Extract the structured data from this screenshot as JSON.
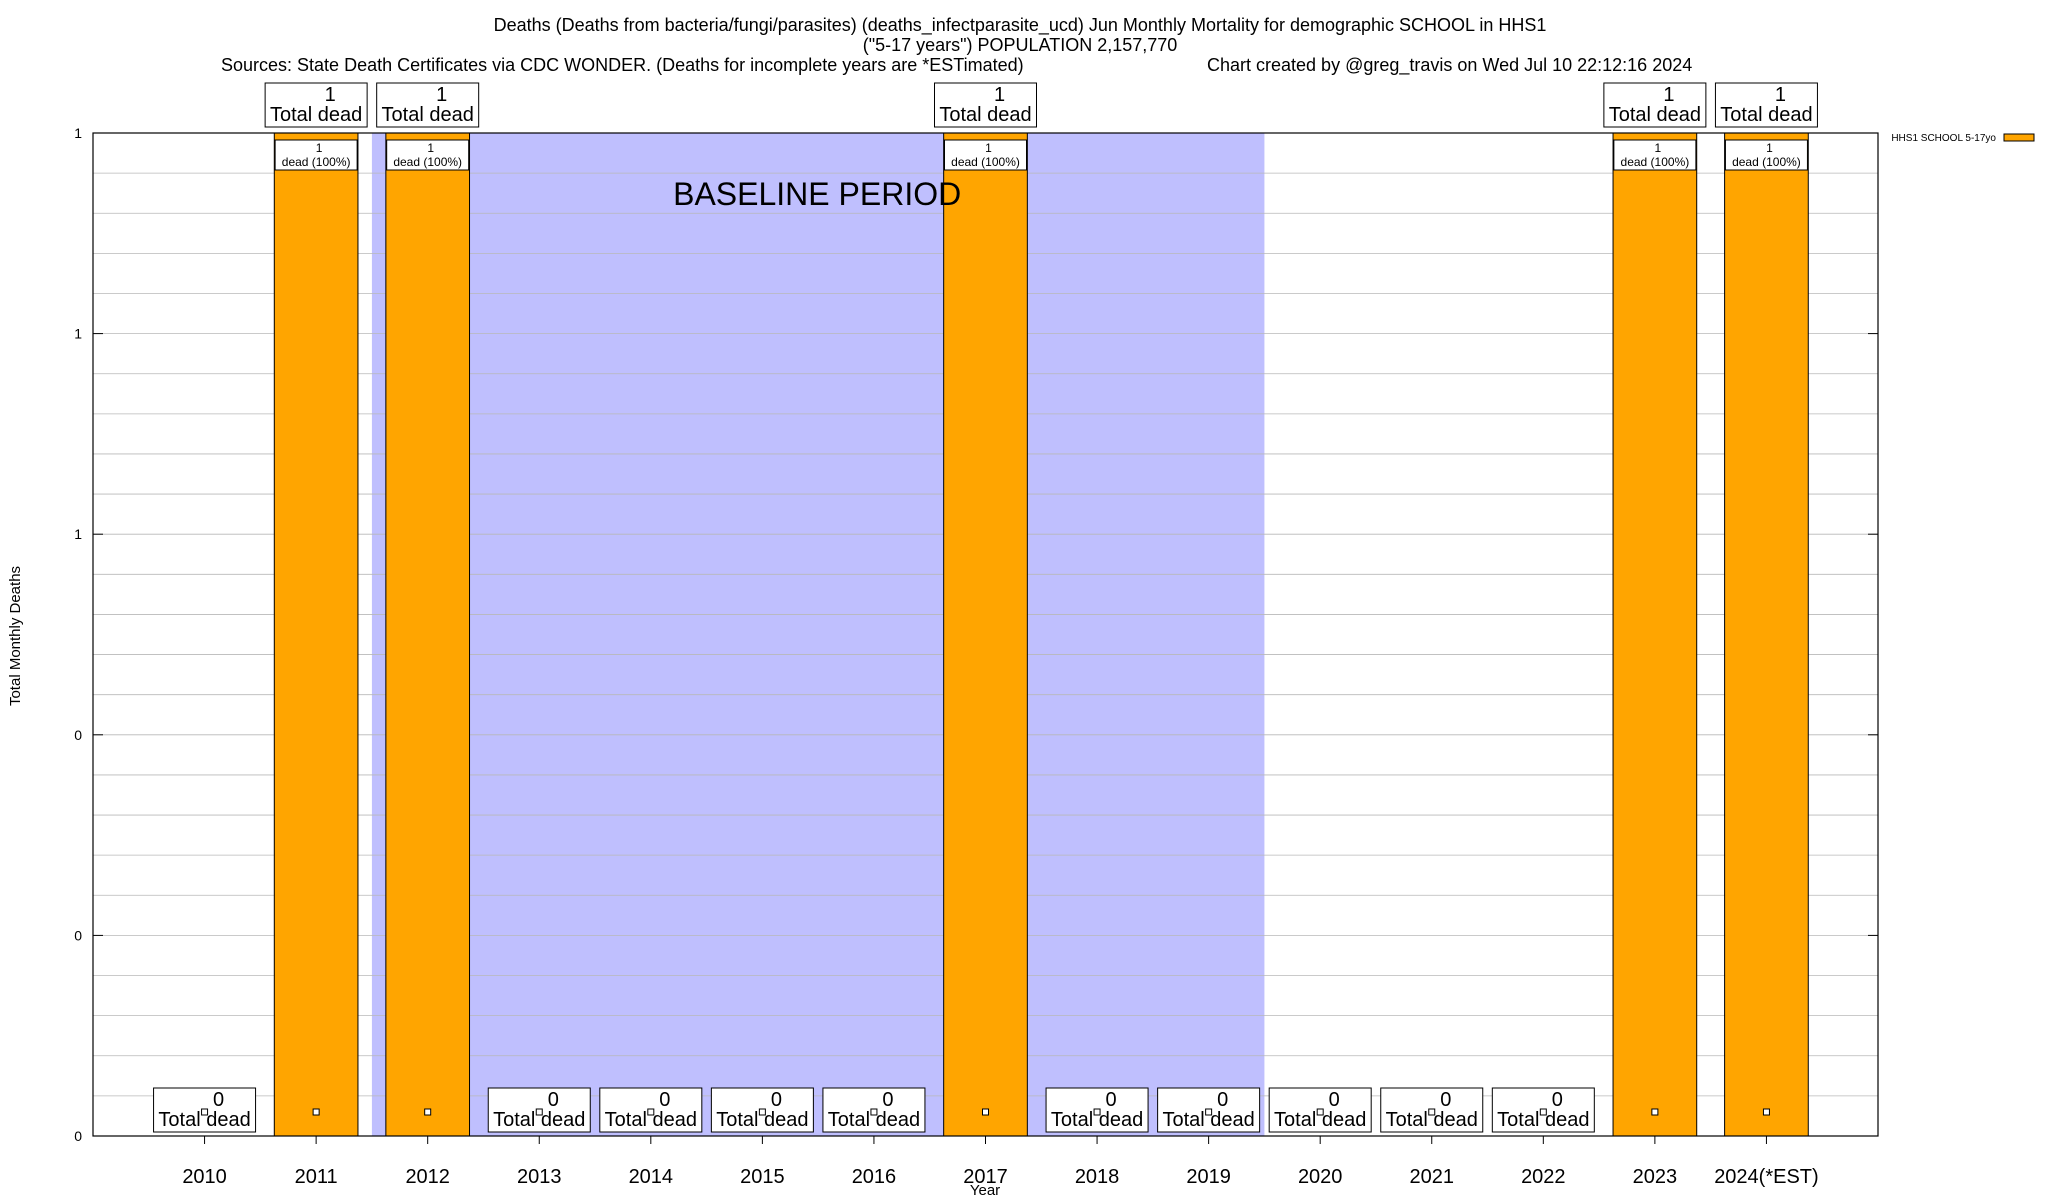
{
  "header": {
    "title_line1": "Deaths (Deaths from bacteria/fungi/parasites) (deaths_infectparasite_ucd) Jun Monthly Mortality for demographic SCHOOL in HHS1",
    "title_line2": "(\"5-17 years\") POPULATION 2,157,770",
    "sources": "Sources: State Death Certificates via CDC WONDER. (Deaths for incomplete years are *ESTimated)",
    "credit": "Chart created by @greg_travis on Wed Jul 10 22:12:16 2024"
  },
  "chart_data": {
    "type": "bar",
    "xlabel": "Year",
    "ylabel": "Total Monthly Deaths",
    "ylim": [
      0,
      1
    ],
    "y_tick_labels": [
      "0",
      "0",
      "0",
      "1",
      "1",
      "1"
    ],
    "categories": [
      "2010",
      "2011",
      "2012",
      "2013",
      "2014",
      "2015",
      "2016",
      "2017",
      "2018",
      "2019",
      "2020",
      "2021",
      "2022",
      "2023",
      "2024(*EST)"
    ],
    "series": [
      {
        "name": "HHS1 SCHOOL 5-17yo",
        "color": "#ffa500",
        "values": [
          0,
          1,
          1,
          0,
          0,
          0,
          0,
          1,
          0,
          0,
          0,
          0,
          0,
          1,
          1
        ]
      }
    ],
    "total_labels": [
      [
        "0",
        "Total dead"
      ],
      [
        "1",
        "Total dead"
      ],
      [
        "1",
        "Total dead"
      ],
      [
        "0",
        "Total dead"
      ],
      [
        "0",
        "Total dead"
      ],
      [
        "0",
        "Total dead"
      ],
      [
        "0",
        "Total dead"
      ],
      [
        "1",
        "Total dead"
      ],
      [
        "0",
        "Total dead"
      ],
      [
        "0",
        "Total dead"
      ],
      [
        "0",
        "Total dead"
      ],
      [
        "0",
        "Total dead"
      ],
      [
        "0",
        "Total dead"
      ],
      [
        "1",
        "Total dead"
      ],
      [
        "1",
        "Total dead"
      ]
    ],
    "bar_labels": [
      null,
      [
        "1",
        "dead (100%)"
      ],
      [
        "1",
        "dead (100%)"
      ],
      null,
      null,
      null,
      null,
      [
        "1",
        "dead (100%)"
      ],
      null,
      null,
      null,
      null,
      null,
      [
        "1",
        "dead (100%)"
      ],
      [
        "1",
        "dead (100%)"
      ]
    ],
    "baseline": {
      "label": "BASELINE PERIOD",
      "from": 2011.5,
      "to": 2019.5,
      "color": "#bfbffe"
    },
    "legend": {
      "label": "HHS1 SCHOOL 5-17yo",
      "position": "top-right"
    },
    "grid": true
  }
}
